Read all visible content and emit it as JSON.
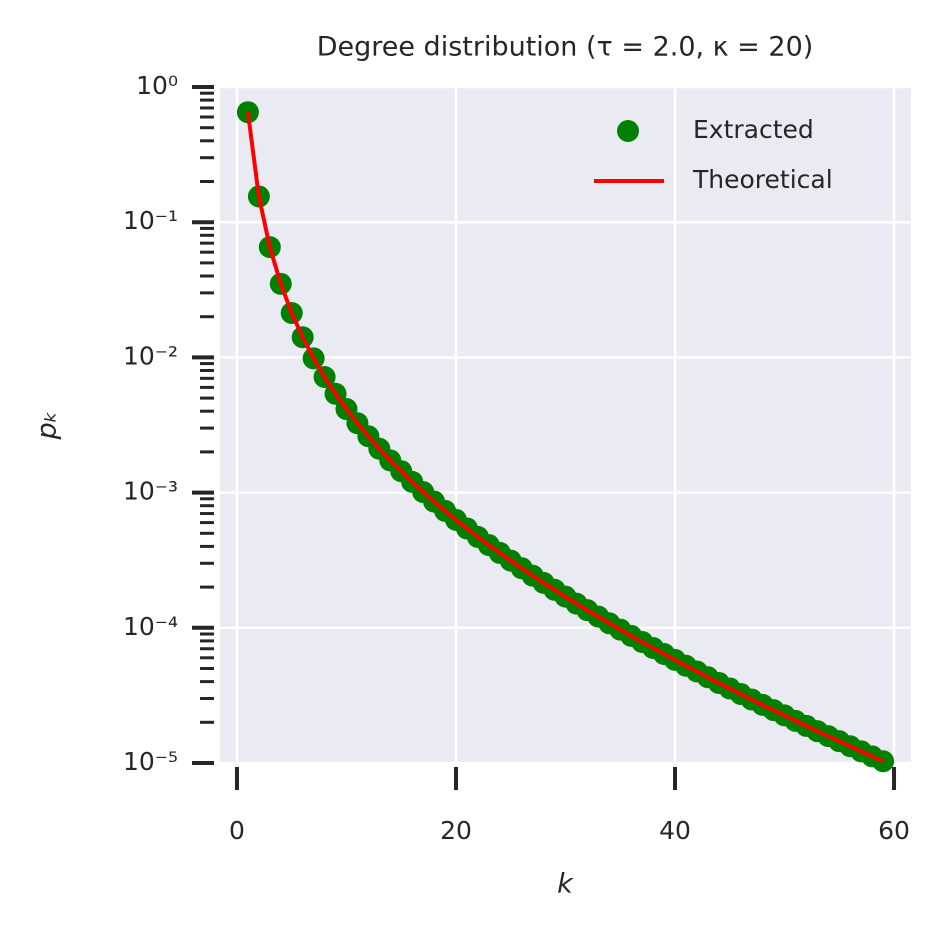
{
  "chart_data": {
    "type": "combo",
    "title": "Degree distribution (τ = 2.0, κ = 20)",
    "xlabel": "k",
    "ylabel": "pₖ",
    "x": [
      1,
      2,
      3,
      4,
      5,
      6,
      7,
      8,
      9,
      10,
      11,
      12,
      13,
      14,
      15,
      16,
      17,
      18,
      19,
      20,
      21,
      22,
      23,
      24,
      25,
      26,
      27,
      28,
      29,
      30,
      31,
      32,
      33,
      34,
      35,
      36,
      37,
      38,
      39,
      40,
      41,
      42,
      43,
      44,
      45,
      46,
      47,
      48,
      49,
      50,
      51,
      52,
      53,
      54,
      55,
      56,
      57,
      58,
      59
    ],
    "series": [
      {
        "name": "Extracted",
        "type": "scatter",
        "color": "#008000",
        "values": [
          0.651,
          0.155,
          0.0654,
          0.035,
          0.0213,
          0.0141,
          0.00984,
          0.00716,
          0.00538,
          0.00415,
          0.00326,
          0.00261,
          0.00211,
          0.00173,
          0.00144,
          0.0012,
          0.00101,
          0.000858,
          0.000733,
          0.000629,
          0.000543,
          0.00047,
          0.000409,
          0.000358,
          0.000314,
          0.000276,
          0.000243,
          0.000215,
          0.000191,
          0.00017,
          0.000151,
          0.000135,
          0.000121,
          0.000108,
          9.7e-05,
          8.72e-05,
          7.86e-05,
          7.09e-05,
          6.4e-05,
          5.79e-05,
          5.24e-05,
          4.75e-05,
          4.31e-05,
          3.91e-05,
          3.56e-05,
          3.24e-05,
          2.95e-05,
          2.69e-05,
          2.46e-05,
          2.25e-05,
          2.05e-05,
          1.88e-05,
          1.72e-05,
          1.58e-05,
          1.45e-05,
          1.33e-05,
          1.22e-05,
          1.12e-05,
          1.03e-05
        ]
      },
      {
        "name": "Theoretical",
        "type": "line",
        "color": "#ff0000",
        "values": [
          0.651,
          0.155,
          0.0654,
          0.035,
          0.0213,
          0.0141,
          0.00984,
          0.00716,
          0.00538,
          0.00415,
          0.00326,
          0.00261,
          0.00211,
          0.00173,
          0.00144,
          0.0012,
          0.00101,
          0.000858,
          0.000733,
          0.000629,
          0.000543,
          0.00047,
          0.000409,
          0.000358,
          0.000314,
          0.000276,
          0.000243,
          0.000215,
          0.000191,
          0.00017,
          0.000151,
          0.000135,
          0.000121,
          0.000108,
          9.7e-05,
          8.72e-05,
          7.86e-05,
          7.09e-05,
          6.4e-05,
          5.79e-05,
          5.24e-05,
          4.75e-05,
          4.31e-05,
          3.91e-05,
          3.56e-05,
          3.24e-05,
          2.95e-05,
          2.69e-05,
          2.46e-05,
          2.25e-05,
          2.05e-05,
          1.88e-05,
          1.72e-05,
          1.58e-05,
          1.45e-05,
          1.33e-05,
          1.22e-05,
          1.12e-05,
          1.03e-05
        ]
      }
    ],
    "xlim": [
      -1.55,
      61.55
    ],
    "xticks": [
      0,
      20,
      40,
      60
    ],
    "ylim": [
      1e-05,
      1
    ],
    "yscale": "log",
    "yticks": [
      {
        "value": 1e-05,
        "label": "10⁻⁵"
      },
      {
        "value": 0.0001,
        "label": "10⁻⁴"
      },
      {
        "value": 0.001,
        "label": "10⁻³"
      },
      {
        "value": 0.01,
        "label": "10⁻²"
      },
      {
        "value": 0.1,
        "label": "10⁻¹"
      },
      {
        "value": 1,
        "label": "10⁰"
      }
    ],
    "yminorticks": [
      2e-05,
      3e-05,
      4e-05,
      5e-05,
      6e-05,
      7e-05,
      8e-05,
      9e-05,
      0.0002,
      0.0003,
      0.0004,
      0.0005,
      0.0006,
      0.0007,
      0.0008,
      0.0009,
      0.002,
      0.003,
      0.004,
      0.005,
      0.006,
      0.007,
      0.008,
      0.009,
      0.02,
      0.03,
      0.04,
      0.05,
      0.06,
      0.07,
      0.08,
      0.09,
      0.2,
      0.3,
      0.4,
      0.5,
      0.6,
      0.7,
      0.8,
      0.9
    ],
    "grid": true,
    "legend": "upper right"
  }
}
